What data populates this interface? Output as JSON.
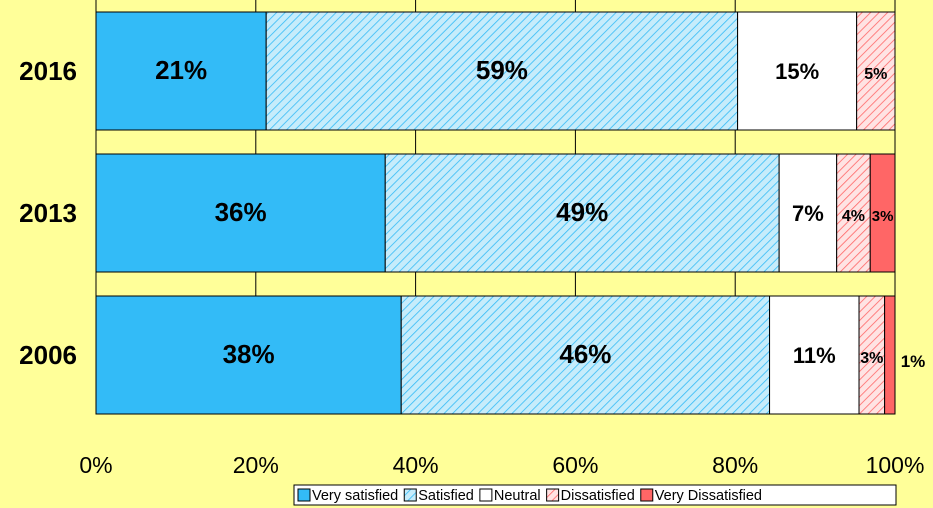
{
  "chart_data": {
    "type": "bar",
    "orientation": "horizontal",
    "stacked": true,
    "categories": [
      "2016",
      "2013",
      "2006"
    ],
    "series": [
      {
        "name": "Very satisfied",
        "values": [
          21.3,
          36.2,
          38.2
        ],
        "labels": [
          "21%",
          "36%",
          "38%"
        ],
        "color": "#33BBF7",
        "pattern": "solid"
      },
      {
        "name": "Satisfied",
        "values": [
          59.0,
          49.3,
          46.1
        ],
        "labels": [
          "59%",
          "49%",
          "46%"
        ],
        "color": "#33BBF7",
        "pattern": "hatch"
      },
      {
        "name": "Neutral",
        "values": [
          14.9,
          7.2,
          11.2
        ],
        "labels": [
          "15%",
          "7%",
          "11%"
        ],
        "color": "#FFFFFF",
        "pattern": "solid"
      },
      {
        "name": "Dissatisfied",
        "values": [
          4.8,
          4.2,
          3.2
        ],
        "labels": [
          "5%",
          "4%",
          "3%"
        ],
        "color": "#FF6666",
        "pattern": "hatch"
      },
      {
        "name": "Very Dissatisfied",
        "values": [
          0,
          3.1,
          1.3
        ],
        "labels": [
          "",
          "3%",
          "1%"
        ],
        "color": "#FF6666",
        "pattern": "solid"
      }
    ],
    "xlim": [
      0,
      100
    ],
    "xticks": [
      "0%",
      "20%",
      "40%",
      "60%",
      "80%",
      "100%"
    ],
    "grid": true,
    "legend_position": "bottom-right"
  }
}
